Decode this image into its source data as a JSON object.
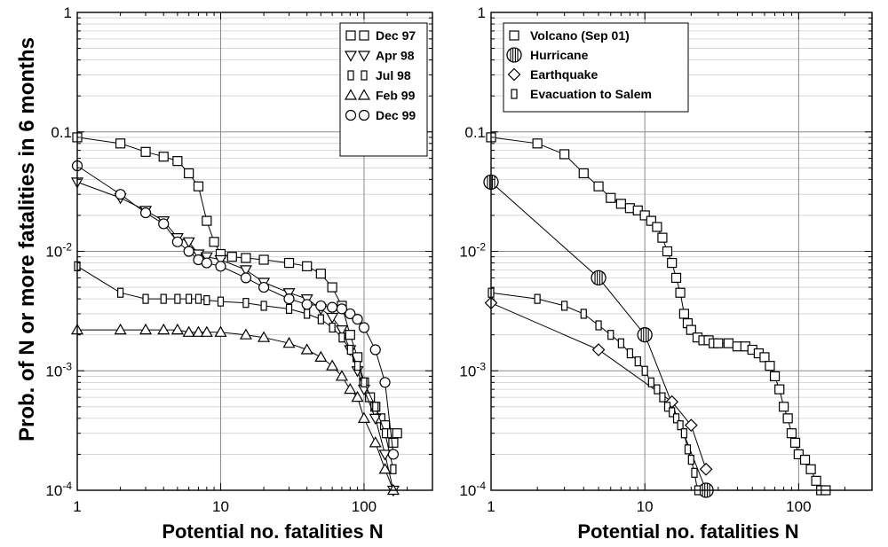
{
  "ylabel": "Prob. of N or more fatalities in 6 months",
  "chart_data": [
    {
      "type": "scatter",
      "title": "",
      "xlabel": "Potential no. fatalities N",
      "ylabel": "Prob. of N or more fatalities in 6 months",
      "x_scale": "log",
      "y_scale": "log",
      "xlim": [
        1,
        300
      ],
      "ylim": [
        0.0001,
        1
      ],
      "x_ticks": [
        "1",
        "10",
        "100"
      ],
      "y_ticks": [
        "10-4",
        "10-3",
        "10-2",
        "0.1",
        "1"
      ],
      "grid": true,
      "legend_position": "top-right",
      "series": [
        {
          "name": "Dec 97",
          "marker": "square",
          "x": [
            1,
            2,
            3,
            4,
            5,
            6,
            7,
            8,
            9,
            10,
            12,
            15,
            20,
            30,
            40,
            50,
            60,
            70,
            80,
            90,
            100,
            110,
            120,
            130,
            140,
            150,
            160,
            170
          ],
          "y": [
            0.09,
            0.08,
            0.068,
            0.062,
            0.057,
            0.045,
            0.035,
            0.018,
            0.012,
            0.0095,
            0.009,
            0.0088,
            0.0085,
            0.008,
            0.0075,
            0.0065,
            0.005,
            0.0035,
            0.002,
            0.0013,
            0.0008,
            0.0006,
            0.0005,
            0.0004,
            0.00035,
            0.0003,
            0.00025,
            0.0003
          ]
        },
        {
          "name": "Apr 98",
          "marker": "triangle-down",
          "x": [
            1,
            2,
            3,
            4,
            5,
            6,
            7,
            8,
            10,
            15,
            20,
            30,
            40,
            50,
            60,
            70,
            80,
            90,
            100,
            120,
            140,
            160
          ],
          "y": [
            0.038,
            0.028,
            0.022,
            0.018,
            0.013,
            0.012,
            0.0095,
            0.009,
            0.0085,
            0.007,
            0.0055,
            0.0045,
            0.004,
            0.0033,
            0.0028,
            0.0022,
            0.0015,
            0.001,
            0.0007,
            0.0004,
            0.0002,
            0.0001
          ]
        },
        {
          "name": "Jul 98",
          "marker": "narrow-rect",
          "x": [
            1,
            2,
            3,
            4,
            5,
            6,
            7,
            8,
            10,
            15,
            20,
            30,
            40,
            50,
            60,
            70,
            80,
            90,
            100,
            120,
            140,
            160
          ],
          "y": [
            0.0075,
            0.0045,
            0.004,
            0.004,
            0.004,
            0.004,
            0.004,
            0.0039,
            0.0038,
            0.0037,
            0.0035,
            0.0033,
            0.003,
            0.0027,
            0.0023,
            0.0019,
            0.0015,
            0.0011,
            0.0008,
            0.0005,
            0.0003,
            0.00015
          ]
        },
        {
          "name": "Feb 99",
          "marker": "triangle-up",
          "x": [
            1,
            2,
            3,
            4,
            5,
            6,
            7,
            8,
            10,
            15,
            20,
            30,
            40,
            50,
            60,
            70,
            80,
            90,
            100,
            120,
            140,
            160
          ],
          "y": [
            0.0022,
            0.0022,
            0.0022,
            0.0022,
            0.0022,
            0.0021,
            0.0021,
            0.0021,
            0.0021,
            0.002,
            0.0019,
            0.0017,
            0.0015,
            0.0013,
            0.0011,
            0.0009,
            0.0007,
            0.0006,
            0.0004,
            0.00025,
            0.00015,
            0.0001
          ]
        },
        {
          "name": "Dec 99",
          "marker": "circle",
          "x": [
            1,
            2,
            3,
            4,
            5,
            6,
            7,
            8,
            10,
            15,
            20,
            30,
            40,
            50,
            60,
            70,
            80,
            90,
            100,
            120,
            140,
            160
          ],
          "y": [
            0.052,
            0.03,
            0.021,
            0.017,
            0.012,
            0.01,
            0.0085,
            0.008,
            0.0075,
            0.006,
            0.005,
            0.004,
            0.0036,
            0.0035,
            0.0034,
            0.0033,
            0.003,
            0.0027,
            0.0023,
            0.0015,
            0.0008,
            0.0002
          ]
        }
      ]
    },
    {
      "type": "scatter",
      "title": "",
      "xlabel": "Potential no. fatalities N",
      "x_scale": "log",
      "y_scale": "log",
      "xlim": [
        1,
        300
      ],
      "ylim": [
        0.0001,
        1
      ],
      "x_ticks": [
        "1",
        "10",
        "100"
      ],
      "y_ticks": [
        "10-4",
        "10-3",
        "10-2",
        "0.1",
        "1"
      ],
      "grid": true,
      "legend_position": "top-right",
      "series": [
        {
          "name": "Volcano (Sep 01)",
          "marker": "square",
          "x": [
            1,
            2,
            3,
            4,
            5,
            6,
            7,
            8,
            9,
            10,
            11,
            12,
            13,
            14,
            15,
            16,
            17,
            18,
            19,
            20,
            22,
            24,
            26,
            28,
            30,
            35,
            40,
            45,
            50,
            55,
            60,
            65,
            70,
            75,
            80,
            85,
            90,
            95,
            100,
            110,
            120,
            130,
            140,
            150
          ],
          "y": [
            0.09,
            0.08,
            0.065,
            0.045,
            0.035,
            0.028,
            0.025,
            0.023,
            0.022,
            0.02,
            0.018,
            0.016,
            0.013,
            0.01,
            0.008,
            0.006,
            0.0045,
            0.003,
            0.0025,
            0.0022,
            0.0019,
            0.0018,
            0.0018,
            0.0017,
            0.0017,
            0.0017,
            0.0016,
            0.0016,
            0.0015,
            0.0014,
            0.0013,
            0.0011,
            0.0009,
            0.0007,
            0.0005,
            0.0004,
            0.0003,
            0.00025,
            0.0002,
            0.00018,
            0.00015,
            0.00012,
            0.0001,
            0.0001
          ]
        },
        {
          "name": "Hurricane",
          "marker": "striped-circle",
          "x": [
            1,
            5,
            10,
            25
          ],
          "y": [
            0.038,
            0.006,
            0.002,
            0.0001
          ]
        },
        {
          "name": "Earthquake",
          "marker": "diamond",
          "x": [
            1,
            5,
            15,
            20,
            25
          ],
          "y": [
            0.0037,
            0.0015,
            0.00055,
            0.00035,
            0.00015
          ]
        },
        {
          "name": "Evacuation to Salem",
          "marker": "narrow-rect",
          "x": [
            1,
            2,
            3,
            4,
            5,
            6,
            7,
            8,
            9,
            10,
            11,
            12,
            13,
            14,
            15,
            16,
            17,
            18,
            19,
            20,
            21,
            22
          ],
          "y": [
            0.0045,
            0.004,
            0.0035,
            0.003,
            0.0024,
            0.002,
            0.0017,
            0.0014,
            0.0012,
            0.001,
            0.0008,
            0.0007,
            0.0006,
            0.0005,
            0.00045,
            0.0004,
            0.00035,
            0.0003,
            0.00022,
            0.00018,
            0.00014,
            0.0001
          ]
        }
      ]
    }
  ]
}
